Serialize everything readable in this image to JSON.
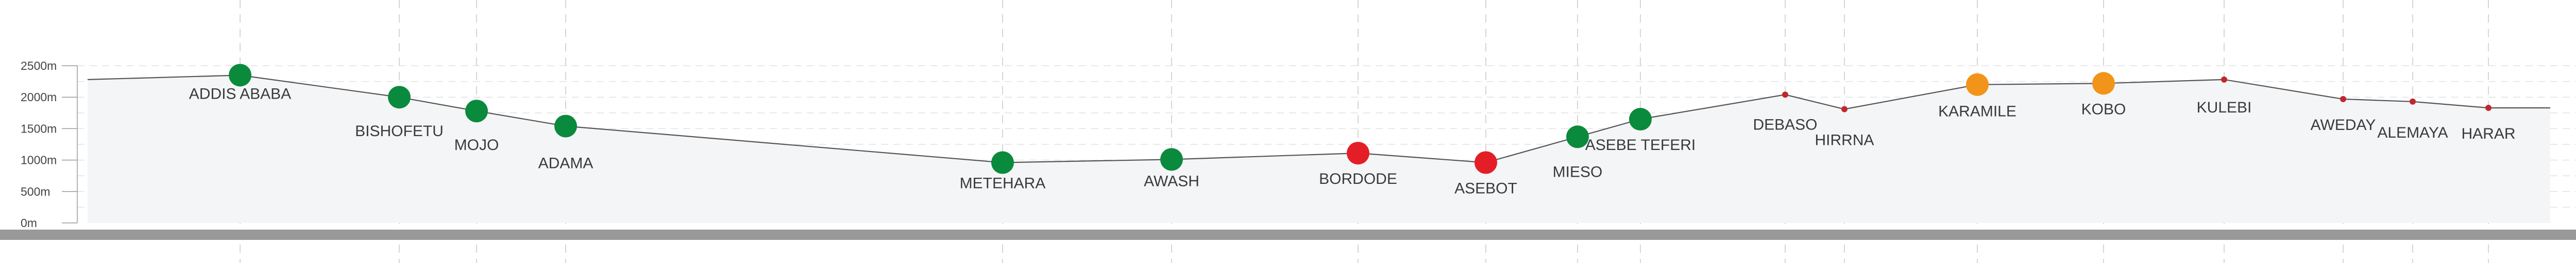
{
  "profile": {
    "y_axis": {
      "unit": "m",
      "ticks": [
        "2500m",
        "2000m",
        "1500m",
        "1000m",
        "500m",
        "0m"
      ],
      "min": 0,
      "max": 2500
    },
    "colors": {
      "green": "#0a8a3c",
      "orange": "#f29419",
      "red": "#e41e26",
      "minor": "#c0272d",
      "line": "#555555",
      "ground": "#999999",
      "fill": "#f4f5f7"
    },
    "stations": [
      {
        "name": "ADDIS ABABA",
        "elevation": 2350,
        "status": "green"
      },
      {
        "name": "BISHOFETU",
        "elevation": 2000,
        "status": "green"
      },
      {
        "name": "MOJO",
        "elevation": 1780,
        "status": "green"
      },
      {
        "name": "ADAMA",
        "elevation": 1540,
        "status": "green"
      },
      {
        "name": "METEHARA",
        "elevation": 960,
        "status": "green"
      },
      {
        "name": "AWASH",
        "elevation": 1010,
        "status": "green"
      },
      {
        "name": "BORDODE",
        "elevation": 1110,
        "status": "red"
      },
      {
        "name": "ASEBOT",
        "elevation": 960,
        "status": "red"
      },
      {
        "name": "MIESO",
        "elevation": 1370,
        "status": "green"
      },
      {
        "name": "ASEBE TEFERI",
        "elevation": 1650,
        "status": "green"
      },
      {
        "name": "DEBASO",
        "elevation": 2040,
        "status": "minor"
      },
      {
        "name": "HIRRNA",
        "elevation": 1810,
        "status": "minor"
      },
      {
        "name": "KARAMILE",
        "elevation": 2200,
        "status": "orange"
      },
      {
        "name": "KOBO",
        "elevation": 2220,
        "status": "orange"
      },
      {
        "name": "KULEBI",
        "elevation": 2280,
        "status": "minor"
      },
      {
        "name": "AWEDAY",
        "elevation": 1970,
        "status": "minor"
      },
      {
        "name": "ALEMAYA",
        "elevation": 1930,
        "status": "minor"
      },
      {
        "name": "HARAR",
        "elevation": 1830,
        "status": "minor"
      }
    ]
  }
}
